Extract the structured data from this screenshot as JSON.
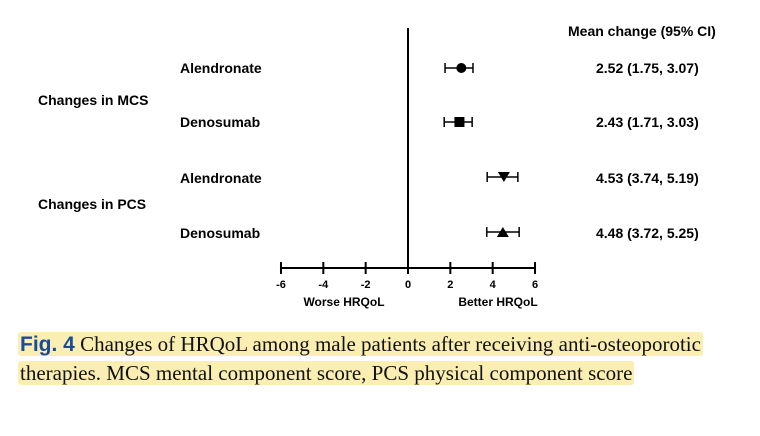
{
  "chart_data": {
    "type": "forest",
    "header": "Mean change (95% CI)",
    "x_axis": {
      "range": [
        -6,
        6
      ],
      "ticks": [
        -6,
        -4,
        -2,
        0,
        2,
        4,
        6
      ],
      "tick_labels": [
        "-6",
        "-4",
        "-2",
        "0",
        "2",
        "4",
        "6"
      ],
      "left_label": "Worse HRQoL",
      "right_label": "Better HRQoL"
    },
    "groups": [
      {
        "label": "Changes in MCS",
        "rows": [
          {
            "label": "Alendronate",
            "mean": 2.52,
            "lower": 1.75,
            "upper": 3.07,
            "marker": "circle",
            "ci_text": "2.52 (1.75, 3.07)"
          },
          {
            "label": "Denosumab",
            "mean": 2.43,
            "lower": 1.71,
            "upper": 3.03,
            "marker": "square",
            "ci_text": "2.43 (1.71, 3.03)"
          }
        ]
      },
      {
        "label": "Changes in PCS",
        "rows": [
          {
            "label": "Alendronate",
            "mean": 4.53,
            "lower": 3.74,
            "upper": 5.19,
            "marker": "triangle-down",
            "ci_text": "4.53 (3.74, 5.19)"
          },
          {
            "label": "Denosumab",
            "mean": 4.48,
            "lower": 3.72,
            "upper": 5.25,
            "marker": "triangle-up",
            "ci_text": "4.48 (3.72, 5.25)"
          }
        ]
      }
    ]
  },
  "caption": {
    "fig_label": "Fig. 4",
    "text": "Changes of HRQoL among male patients after receiving anti-osteoporotic therapies. MCS mental component score, PCS physical component score"
  }
}
